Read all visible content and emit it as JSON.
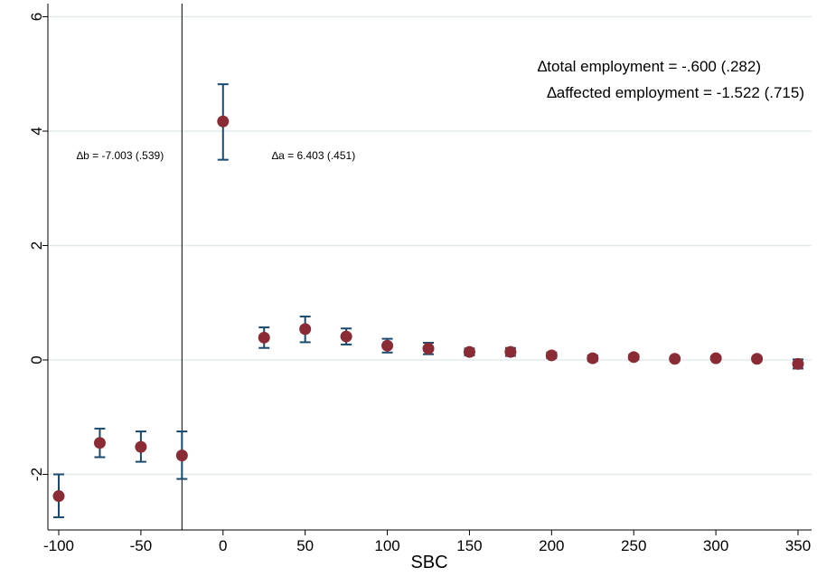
{
  "chart_data": {
    "type": "scatter",
    "title": "",
    "xlabel": "SBC",
    "ylabel": "",
    "xlim": [
      -105,
      355
    ],
    "ylim": [
      -2.9,
      6.2
    ],
    "x_ticks": [
      "-100",
      "-50",
      "0",
      "50",
      "100",
      "150",
      "200",
      "250",
      "300",
      "350"
    ],
    "y_ticks": [
      "-2",
      "0",
      "2",
      "4",
      "6"
    ],
    "grid": true,
    "legend": "none",
    "vline_x": -25,
    "points": [
      {
        "x": -100,
        "y": -2.38,
        "lo": -2.75,
        "hi": -2.0
      },
      {
        "x": -75,
        "y": -1.45,
        "lo": -1.7,
        "hi": -1.2
      },
      {
        "x": -50,
        "y": -1.52,
        "lo": -1.78,
        "hi": -1.25
      },
      {
        "x": -25,
        "y": -1.67,
        "lo": -2.08,
        "hi": -1.25
      },
      {
        "x": 0,
        "y": 4.17,
        "lo": 3.5,
        "hi": 4.82
      },
      {
        "x": 25,
        "y": 0.39,
        "lo": 0.21,
        "hi": 0.57
      },
      {
        "x": 50,
        "y": 0.54,
        "lo": 0.31,
        "hi": 0.76
      },
      {
        "x": 75,
        "y": 0.41,
        "lo": 0.27,
        "hi": 0.55
      },
      {
        "x": 100,
        "y": 0.25,
        "lo": 0.13,
        "hi": 0.37
      },
      {
        "x": 125,
        "y": 0.2,
        "lo": 0.1,
        "hi": 0.3
      },
      {
        "x": 150,
        "y": 0.14,
        "lo": 0.08,
        "hi": 0.2
      },
      {
        "x": 175,
        "y": 0.14,
        "lo": 0.07,
        "hi": 0.21
      },
      {
        "x": 200,
        "y": 0.08,
        "lo": 0.03,
        "hi": 0.13
      },
      {
        "x": 225,
        "y": 0.03,
        "lo": -0.02,
        "hi": 0.08
      },
      {
        "x": 250,
        "y": 0.05,
        "lo": 0.01,
        "hi": 0.09
      },
      {
        "x": 275,
        "y": 0.02,
        "lo": -0.01,
        "hi": 0.05
      },
      {
        "x": 300,
        "y": 0.03,
        "lo": 0.0,
        "hi": 0.06
      },
      {
        "x": 325,
        "y": 0.02,
        "lo": -0.01,
        "hi": 0.05
      },
      {
        "x": 350,
        "y": -0.07,
        "lo": -0.15,
        "hi": 0.01
      }
    ],
    "annotations": {
      "delta_b": "∆b = -7.003 (.539)",
      "delta_a": "∆a = 6.403 (.451)",
      "total_employment": "∆total employment = -.600 (.282)",
      "affected_employment": "∆affected employment = -1.522 (.715)"
    },
    "colors": {
      "marker": "#8b2b35",
      "error_bar": "#1a4a6e",
      "grid": "#e3eaee"
    }
  }
}
